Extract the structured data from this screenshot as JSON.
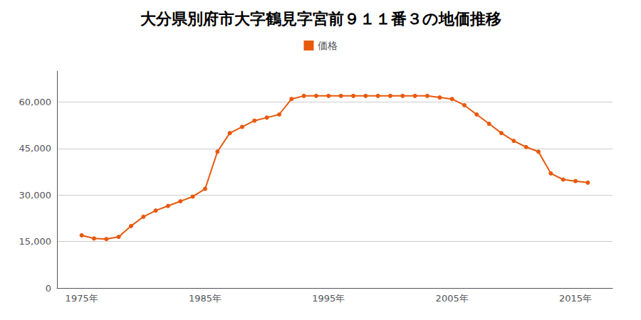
{
  "chart_data": {
    "type": "line",
    "title": "大分県別府市大字鶴見字宮前９１１番３の地価推移",
    "x": [
      1975,
      1976,
      1977,
      1978,
      1979,
      1980,
      1981,
      1982,
      1983,
      1984,
      1985,
      1986,
      1987,
      1988,
      1989,
      1990,
      1991,
      1992,
      1993,
      1994,
      1995,
      1996,
      1997,
      1998,
      1999,
      2000,
      2001,
      2002,
      2003,
      2004,
      2005,
      2006,
      2007,
      2008,
      2009,
      2010,
      2011,
      2012,
      2013,
      2014,
      2015,
      2016
    ],
    "series": [
      {
        "name": "価格",
        "color": "#e8590c",
        "marker": "circle",
        "line_style": "solid",
        "values": [
          17000,
          16000,
          15800,
          16500,
          20000,
          23000,
          25000,
          26500,
          28000,
          29500,
          32000,
          44000,
          50000,
          52000,
          54000,
          55000,
          56000,
          61000,
          62000,
          62000,
          62000,
          62000,
          62000,
          62000,
          62000,
          62000,
          62000,
          62000,
          62000,
          61500,
          61000,
          59000,
          56000,
          53000,
          50000,
          47500,
          45500,
          44000,
          37000,
          35000,
          34500,
          34000
        ]
      }
    ],
    "xlim": [
      1973,
      2018
    ],
    "xticks": [
      {
        "value": 1975,
        "label": "1975年"
      },
      {
        "value": 1985,
        "label": "1985年"
      },
      {
        "value": 1995,
        "label": "1995年"
      },
      {
        "value": 2005,
        "label": "2005年"
      },
      {
        "value": 2015,
        "label": "2015年"
      }
    ],
    "ylim": [
      0,
      70000
    ],
    "yticks": [
      0,
      {
        "value": 15000,
        "label": "15,000"
      },
      {
        "value": 30000,
        "label": "30,000"
      },
      {
        "value": 45000,
        "label": "45,000"
      },
      {
        "value": 60000,
        "label": "60,000"
      }
    ],
    "grid": true,
    "legend": "top"
  }
}
